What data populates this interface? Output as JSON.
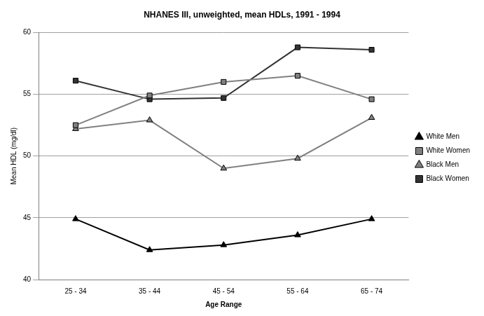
{
  "chart_data": {
    "type": "line",
    "title": "NHANES III, unweighted, mean HDLs, 1991 - 1994",
    "x_label": "Age Range",
    "y_label": "Mean HDL (mg/dl)",
    "categories": [
      "25 - 34",
      "35 - 44",
      "45 - 54",
      "55 - 64",
      "65 - 74"
    ],
    "series": [
      {
        "name": "White Men",
        "color": "#000000",
        "marker": "triangle",
        "values": [
          44.9,
          42.4,
          42.8,
          43.6,
          44.9
        ]
      },
      {
        "name": "White Women",
        "color": "#808080",
        "marker": "square",
        "values": [
          52.5,
          54.9,
          56.0,
          56.5,
          54.6
        ]
      },
      {
        "name": "Black Men",
        "color": "#808080",
        "marker": "triangle",
        "values": [
          52.2,
          52.9,
          49.0,
          49.8,
          53.1
        ]
      },
      {
        "name": "Black Women",
        "color": "#333333",
        "marker": "square",
        "values": [
          56.1,
          54.6,
          54.7,
          58.8,
          58.6
        ]
      }
    ],
    "ylim": [
      40,
      60
    ],
    "yticks": [
      40,
      45,
      50,
      55,
      60
    ],
    "grid": true,
    "legend": "right"
  }
}
